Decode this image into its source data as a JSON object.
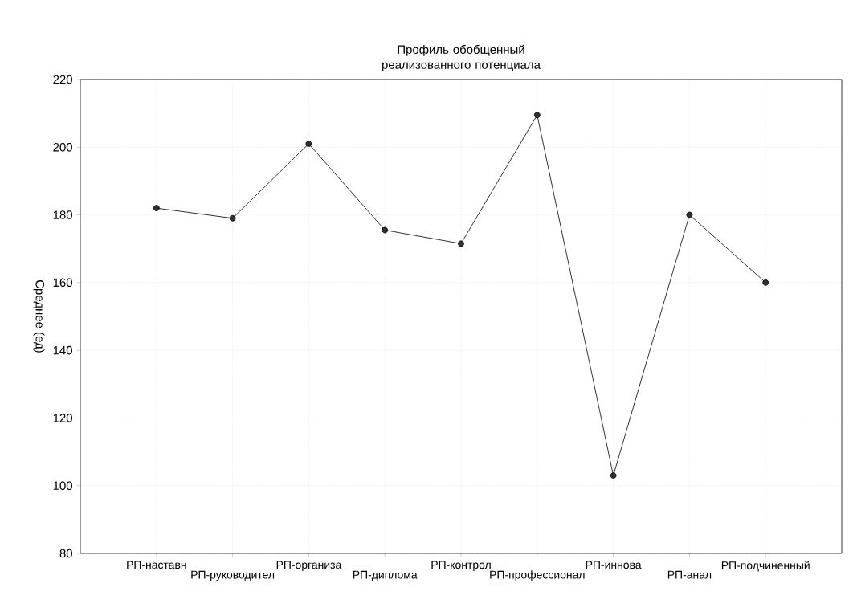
{
  "chart_data": {
    "type": "line",
    "title": "Профиль обобщенный реализованного потенциала",
    "ylabel": "Среднее (ед)",
    "categories": [
      "РП-наставн",
      "РП-руководител",
      "РП-организа",
      "РП-диплома",
      "РП-контрол",
      "РП-профессионал",
      "РП-иннова",
      "РП-анал",
      "РП-подчиненный"
    ],
    "values": [
      182,
      179,
      201,
      175.5,
      171.5,
      209.5,
      103,
      180,
      160
    ],
    "color": "#303030",
    "ylim": [
      80,
      220
    ],
    "yticks": [
      80,
      100,
      120,
      140,
      160,
      180,
      200,
      220
    ],
    "grid": true,
    "marker": "circle",
    "line_style": "solid"
  }
}
